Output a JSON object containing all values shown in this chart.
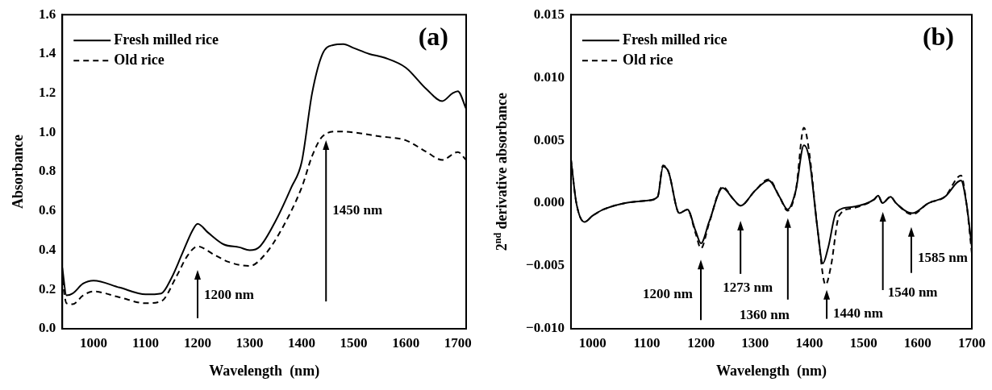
{
  "chart_data": [
    {
      "type": "line",
      "xlabel": "Wavelength  (nm)",
      "ylabel": "Absorbance",
      "legend": "top left",
      "grid": false,
      "xlim": [
        940,
        1716
      ],
      "xticks": [
        1000,
        1100,
        1200,
        1300,
        1400,
        1500,
        1600,
        1700
      ],
      "ylim": [
        0,
        1.6
      ],
      "yticks": [
        {
          "value": 0,
          "label": "0.0"
        },
        {
          "value": 0.2,
          "label": "0.2"
        },
        {
          "value": 0.4,
          "label": "0.4"
        },
        {
          "value": 0.6,
          "label": "0.6"
        },
        {
          "value": 0.8,
          "label": "0.8"
        },
        {
          "value": 1,
          "label": "1.0"
        },
        {
          "value": 1.2,
          "label": "1.2"
        },
        {
          "value": 1.4,
          "label": "1.4"
        },
        {
          "value": 1.6,
          "label": "1.6"
        }
      ],
      "series": [
        {
          "name": "Fresh milled rice",
          "color": "#000000",
          "line_style": "solid",
          "x": [
            940,
            948,
            960,
            980,
            1000,
            1050,
            1100,
            1130,
            1150,
            1170,
            1190,
            1200,
            1220,
            1250,
            1280,
            1300,
            1320,
            1350,
            1380,
            1400,
            1420,
            1440,
            1460,
            1480,
            1500,
            1530,
            1560,
            1600,
            1640,
            1670,
            1690,
            1700,
            1716
          ],
          "values": [
            0.31,
            0.17,
            0.18,
            0.23,
            0.245,
            0.21,
            0.175,
            0.18,
            0.26,
            0.38,
            0.5,
            0.535,
            0.49,
            0.43,
            0.415,
            0.4,
            0.42,
            0.55,
            0.72,
            0.85,
            1.2,
            1.4,
            1.445,
            1.45,
            1.43,
            1.4,
            1.38,
            1.33,
            1.22,
            1.16,
            1.2,
            1.21,
            1.12
          ]
        },
        {
          "name": "Old rice",
          "color": "#000000",
          "line_style": "dashed",
          "x": [
            940,
            948,
            960,
            980,
            1000,
            1050,
            1100,
            1130,
            1160,
            1180,
            1200,
            1230,
            1260,
            1300,
            1330,
            1360,
            1400,
            1420,
            1440,
            1470,
            1500,
            1550,
            1600,
            1640,
            1670,
            1700,
            1716
          ],
          "values": [
            0.25,
            0.13,
            0.125,
            0.17,
            0.19,
            0.16,
            0.13,
            0.14,
            0.27,
            0.37,
            0.42,
            0.38,
            0.34,
            0.32,
            0.38,
            0.5,
            0.72,
            0.88,
            0.98,
            1.005,
            1.0,
            0.98,
            0.96,
            0.9,
            0.86,
            0.9,
            0.86
          ]
        }
      ],
      "annotations": [
        "(a)",
        "1200 nm",
        "1450 nm"
      ]
    },
    {
      "type": "line",
      "xlabel": "Wavelength  (nm)",
      "ylabel": "2$^{nd}$ derivative absorbance",
      "legend": "top left",
      "grid": false,
      "xlim": [
        960,
        1700
      ],
      "xticks": [
        1000,
        1100,
        1200,
        1300,
        1400,
        1500,
        1600,
        1700
      ],
      "ylim": [
        -0.01,
        0.015
      ],
      "yticks": [
        {
          "value": -0.01,
          "label": "−0.010"
        },
        {
          "value": -0.005,
          "label": "−0.005"
        },
        {
          "value": 0,
          "label": "0.000"
        },
        {
          "value": 0.005,
          "label": "0.005"
        },
        {
          "value": 0.01,
          "label": "0.010"
        },
        {
          "value": 0.015,
          "label": "0.015"
        }
      ],
      "series": [
        {
          "name": "Fresh milled rice",
          "color": "#000000",
          "line_style": "solid",
          "x": [
            960,
            970,
            985,
            1000,
            1020,
            1060,
            1100,
            1120,
            1130,
            1140,
            1160,
            1175,
            1190,
            1200,
            1215,
            1240,
            1260,
            1273,
            1300,
            1325,
            1345,
            1360,
            1375,
            1390,
            1400,
            1415,
            1425,
            1435,
            1450,
            1480,
            1520,
            1527,
            1535,
            1550,
            1560,
            1590,
            1620,
            1650,
            1680,
            1690,
            1700
          ],
          "values": [
            0.0035,
            0.0,
            -0.0015,
            -0.001,
            -0.0005,
            0.0,
            0.0002,
            0.0005,
            0.0029,
            0.0025,
            -0.0008,
            -0.0005,
            -0.0022,
            -0.0032,
            -0.0015,
            0.0012,
            0.0003,
            -0.0002,
            0.001,
            0.0018,
            0.0005,
            -0.0005,
            0.001,
            0.0046,
            0.0035,
            -0.002,
            -0.0048,
            -0.0035,
            -0.0007,
            -0.0003,
            0.0003,
            0.0006,
            0.0,
            0.0005,
            0.0,
            -0.0008,
            0.0,
            0.0005,
            0.0018,
            0.0,
            -0.0035
          ]
        },
        {
          "name": "Old rice",
          "color": "#000000",
          "line_style": "dashed",
          "x": [
            960,
            970,
            985,
            1000,
            1020,
            1060,
            1100,
            1120,
            1130,
            1140,
            1160,
            1175,
            1190,
            1200,
            1215,
            1240,
            1260,
            1273,
            1300,
            1325,
            1345,
            1360,
            1375,
            1390,
            1400,
            1415,
            1430,
            1440,
            1455,
            1480,
            1520,
            1527,
            1535,
            1550,
            1560,
            1590,
            1620,
            1650,
            1680,
            1690,
            1700
          ],
          "values": [
            0.0035,
            0.0,
            -0.0015,
            -0.001,
            -0.0005,
            0.0,
            0.0002,
            0.0005,
            0.003,
            0.0025,
            -0.0008,
            -0.0005,
            -0.0024,
            -0.0036,
            -0.0016,
            0.0013,
            0.0003,
            -0.0002,
            0.001,
            0.0019,
            0.0005,
            -0.0006,
            0.001,
            0.006,
            0.004,
            -0.002,
            -0.0065,
            -0.005,
            -0.001,
            -0.0004,
            0.0003,
            0.0006,
            0.0,
            0.0005,
            0.0,
            -0.0009,
            0.0,
            0.0005,
            0.0022,
            0.0,
            -0.004
          ]
        }
      ],
      "annotations": [
        "(b)",
        "1200 nm",
        "1273 nm",
        "1360 nm",
        "1440 nm",
        "1540 nm",
        "1585 nm"
      ]
    }
  ]
}
